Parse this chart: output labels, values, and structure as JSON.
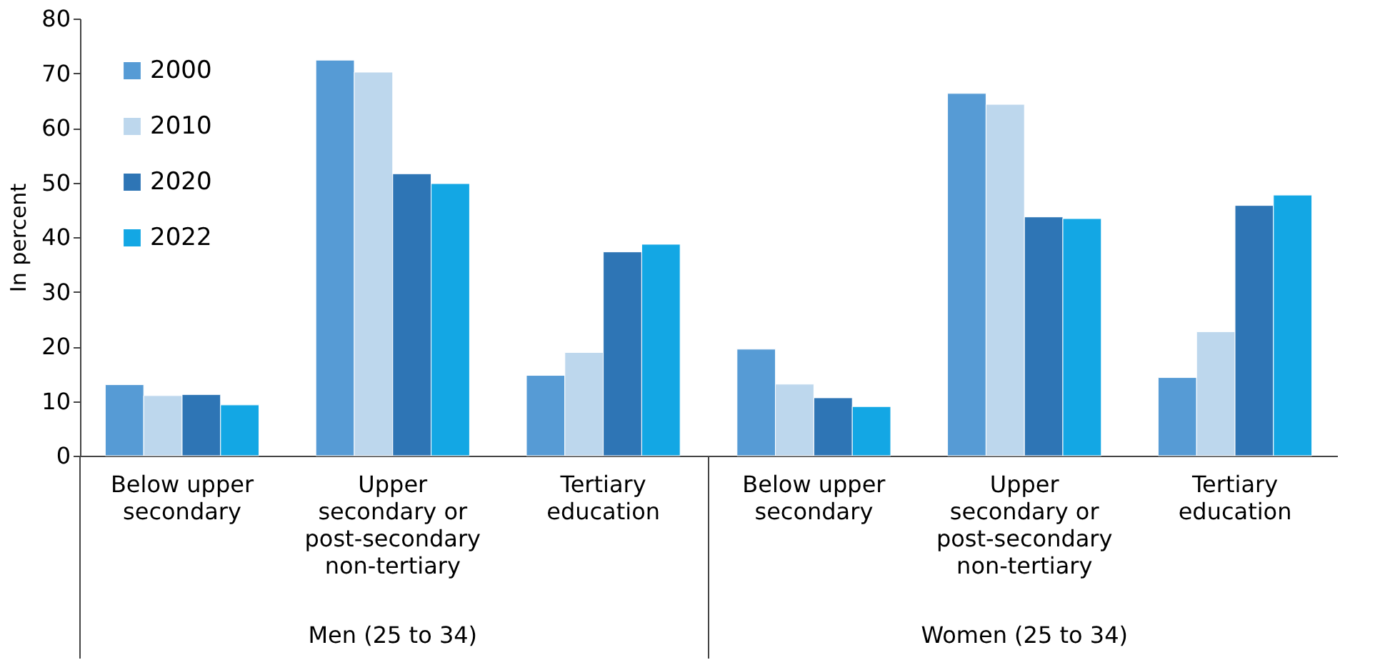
{
  "chart_data": {
    "type": "bar",
    "ylabel": "In percent",
    "categories": [
      "Below upper secondary",
      "Upper secondary or post-secondary non-tertiary",
      "Tertiary education",
      "Below upper secondary",
      "Upper secondary or post-secondary non-tertiary",
      "Tertiary education"
    ],
    "series": [
      {
        "name": "2000",
        "color": "#569bd5",
        "values": [
          13.0,
          72.4,
          14.7,
          19.5,
          66.3,
          14.3
        ]
      },
      {
        "name": "2010",
        "color": "#bdd7ed",
        "values": [
          11.0,
          70.2,
          18.9,
          13.1,
          64.3,
          22.7
        ]
      },
      {
        "name": "2020",
        "color": "#2e75b5",
        "values": [
          11.2,
          51.6,
          37.3,
          10.6,
          43.7,
          45.8
        ]
      },
      {
        "name": "2022",
        "color": "#13a7e4",
        "values": [
          9.3,
          49.8,
          38.7,
          9.0,
          43.4,
          47.7
        ]
      }
    ],
    "ylim": [
      0,
      80
    ],
    "yticks": [
      0,
      10,
      20,
      30,
      40,
      50,
      60,
      70,
      80
    ],
    "grid": false,
    "legend": "top left",
    "annotations": [
      "Men (25 to 34)",
      "Women (25 to 34)"
    ]
  }
}
